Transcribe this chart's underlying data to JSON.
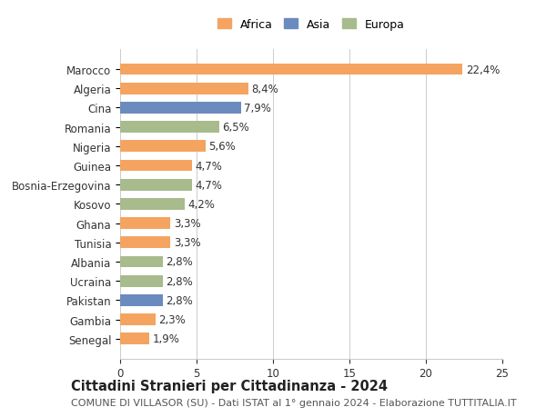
{
  "countries": [
    "Marocco",
    "Algeria",
    "Cina",
    "Romania",
    "Nigeria",
    "Guinea",
    "Bosnia-Erzegovina",
    "Kosovo",
    "Ghana",
    "Tunisia",
    "Albania",
    "Ucraina",
    "Pakistan",
    "Gambia",
    "Senegal"
  ],
  "values": [
    22.4,
    8.4,
    7.9,
    6.5,
    5.6,
    4.7,
    4.7,
    4.2,
    3.3,
    3.3,
    2.8,
    2.8,
    2.8,
    2.3,
    1.9
  ],
  "continents": [
    "Africa",
    "Africa",
    "Asia",
    "Europa",
    "Africa",
    "Africa",
    "Europa",
    "Europa",
    "Africa",
    "Africa",
    "Europa",
    "Europa",
    "Asia",
    "Africa",
    "Africa"
  ],
  "continent_colors": {
    "Africa": "#F4A460",
    "Asia": "#6B8BBE",
    "Europa": "#A8BB8C"
  },
  "legend_items": [
    "Africa",
    "Asia",
    "Europa"
  ],
  "title": "Cittadini Stranieri per Cittadinanza - 2024",
  "subtitle": "COMUNE DI VILLASOR (SU) - Dati ISTAT al 1° gennaio 2024 - Elaborazione TUTTITALIA.IT",
  "xlim": [
    0,
    25
  ],
  "xticks": [
    0,
    5,
    10,
    15,
    20,
    25
  ],
  "background_color": "#ffffff",
  "grid_color": "#cccccc",
  "bar_height": 0.6,
  "label_fontsize": 8.5,
  "tick_fontsize": 8.5,
  "title_fontsize": 10.5,
  "subtitle_fontsize": 8
}
